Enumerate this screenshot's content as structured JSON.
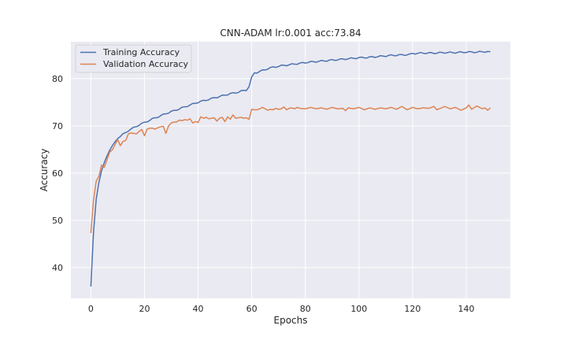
{
  "chart_data": {
    "type": "line",
    "title": "CNN-ADAM lr:0.001 acc:73.84",
    "xlabel": "Epochs",
    "ylabel": "Accuracy",
    "xlim": [
      -7.45,
      156.45
    ],
    "ylim": [
      33.5,
      87.8
    ],
    "xticks": [
      0,
      20,
      40,
      60,
      80,
      100,
      120,
      140
    ],
    "yticks": [
      40,
      50,
      60,
      70,
      80
    ],
    "grid": true,
    "legend_position": "top-left",
    "series": [
      {
        "name": "Training Accuracy",
        "color": "#4c72b0",
        "keypoints": [
          [
            0,
            36.0
          ],
          [
            1,
            47.5
          ],
          [
            2,
            54.5
          ],
          [
            3,
            58.0
          ],
          [
            4,
            60.5
          ],
          [
            5,
            62.2
          ],
          [
            6,
            63.6
          ],
          [
            7,
            64.8
          ],
          [
            8,
            65.8
          ],
          [
            9,
            66.6
          ],
          [
            10,
            67.3
          ],
          [
            12,
            68.2
          ],
          [
            14,
            69.0
          ],
          [
            16,
            69.6
          ],
          [
            18,
            70.2
          ],
          [
            20,
            70.7
          ],
          [
            22,
            71.2
          ],
          [
            24,
            71.7
          ],
          [
            26,
            72.1
          ],
          [
            28,
            72.6
          ],
          [
            30,
            73.0
          ],
          [
            32,
            73.4
          ],
          [
            34,
            73.8
          ],
          [
            36,
            74.2
          ],
          [
            38,
            74.6
          ],
          [
            40,
            75.0
          ],
          [
            42,
            75.3
          ],
          [
            44,
            75.6
          ],
          [
            46,
            75.9
          ],
          [
            48,
            76.2
          ],
          [
            50,
            76.5
          ],
          [
            52,
            76.8
          ],
          [
            54,
            77.0
          ],
          [
            56,
            77.3
          ],
          [
            58,
            77.6
          ],
          [
            59,
            78.3
          ],
          [
            60,
            80.2
          ],
          [
            61,
            81.2
          ],
          [
            62,
            81.3
          ],
          [
            64,
            81.7
          ],
          [
            66,
            82.1
          ],
          [
            68,
            82.4
          ],
          [
            70,
            82.6
          ],
          [
            72,
            82.8
          ],
          [
            74,
            82.9
          ],
          [
            76,
            83.1
          ],
          [
            78,
            83.2
          ],
          [
            80,
            83.4
          ],
          [
            84,
            83.6
          ],
          [
            88,
            83.8
          ],
          [
            92,
            84.0
          ],
          [
            96,
            84.2
          ],
          [
            100,
            84.4
          ],
          [
            104,
            84.5
          ],
          [
            108,
            84.7
          ],
          [
            112,
            84.9
          ],
          [
            116,
            85.0
          ],
          [
            119,
            85.1
          ],
          [
            120,
            85.3
          ],
          [
            124,
            85.4
          ],
          [
            128,
            85.4
          ],
          [
            132,
            85.5
          ],
          [
            136,
            85.5
          ],
          [
            140,
            85.6
          ],
          [
            144,
            85.6
          ],
          [
            147,
            85.7
          ],
          [
            149,
            85.7
          ]
        ],
        "wiggle": 0.15
      },
      {
        "name": "Validation Accuracy",
        "color": "#dd8452",
        "keypoints": [
          [
            0,
            47.3
          ],
          [
            1,
            54.3
          ],
          [
            2,
            58.3
          ],
          [
            3,
            59.3
          ],
          [
            4,
            61.7
          ],
          [
            5,
            61.2
          ],
          [
            6,
            62.8
          ],
          [
            7,
            64.4
          ],
          [
            8,
            64.9
          ],
          [
            9,
            66.0
          ],
          [
            10,
            67.1
          ],
          [
            11,
            65.8
          ],
          [
            12,
            66.7
          ],
          [
            13,
            66.9
          ],
          [
            14,
            68.3
          ],
          [
            15,
            68.5
          ],
          [
            16,
            68.4
          ],
          [
            17,
            68.3
          ],
          [
            18,
            68.8
          ],
          [
            19,
            69.2
          ],
          [
            20,
            67.9
          ],
          [
            21,
            69.3
          ],
          [
            22,
            69.5
          ],
          [
            23,
            69.5
          ],
          [
            24,
            69.3
          ],
          [
            25,
            69.6
          ],
          [
            26,
            69.8
          ],
          [
            27,
            69.9
          ],
          [
            28,
            68.4
          ],
          [
            29,
            70.0
          ],
          [
            30,
            70.6
          ],
          [
            31,
            70.8
          ],
          [
            32,
            70.8
          ],
          [
            33,
            71.2
          ],
          [
            34,
            71.1
          ],
          [
            35,
            71.3
          ],
          [
            36,
            71.2
          ],
          [
            37,
            71.5
          ],
          [
            38,
            70.6
          ],
          [
            39,
            70.9
          ],
          [
            40,
            70.7
          ],
          [
            41,
            71.9
          ],
          [
            42,
            71.6
          ],
          [
            43,
            71.8
          ],
          [
            44,
            71.5
          ],
          [
            45,
            71.6
          ],
          [
            46,
            71.7
          ],
          [
            47,
            71.0
          ],
          [
            48,
            71.6
          ],
          [
            49,
            71.8
          ],
          [
            50,
            70.9
          ],
          [
            51,
            71.9
          ],
          [
            52,
            71.4
          ],
          [
            53,
            72.3
          ],
          [
            54,
            71.6
          ],
          [
            55,
            71.7
          ],
          [
            56,
            71.8
          ],
          [
            57,
            71.6
          ],
          [
            58,
            71.7
          ],
          [
            59,
            71.4
          ],
          [
            60,
            73.5
          ],
          [
            61,
            73.4
          ],
          [
            62,
            73.4
          ],
          [
            63,
            73.6
          ],
          [
            64,
            73.9
          ],
          [
            65,
            73.6
          ],
          [
            66,
            73.3
          ],
          [
            67,
            73.5
          ],
          [
            68,
            73.4
          ],
          [
            69,
            73.7
          ],
          [
            70,
            73.5
          ],
          [
            71,
            73.6
          ],
          [
            72,
            74.0
          ],
          [
            73,
            73.4
          ],
          [
            74,
            73.7
          ],
          [
            75,
            73.8
          ],
          [
            76,
            73.6
          ],
          [
            77,
            73.9
          ],
          [
            78,
            73.7
          ],
          [
            80,
            73.6
          ],
          [
            82,
            73.9
          ],
          [
            84,
            73.6
          ],
          [
            86,
            73.8
          ],
          [
            88,
            73.5
          ],
          [
            90,
            73.9
          ],
          [
            92,
            73.6
          ],
          [
            94,
            73.7
          ],
          [
            95,
            73.2
          ],
          [
            96,
            73.8
          ],
          [
            98,
            73.6
          ],
          [
            100,
            73.9
          ],
          [
            102,
            73.4
          ],
          [
            104,
            73.8
          ],
          [
            106,
            73.5
          ],
          [
            108,
            73.8
          ],
          [
            110,
            73.6
          ],
          [
            112,
            73.9
          ],
          [
            114,
            73.5
          ],
          [
            116,
            74.1
          ],
          [
            118,
            73.4
          ],
          [
            120,
            73.9
          ],
          [
            122,
            73.6
          ],
          [
            124,
            73.8
          ],
          [
            126,
            73.7
          ],
          [
            128,
            74.1
          ],
          [
            129,
            73.4
          ],
          [
            130,
            73.6
          ],
          [
            132,
            74.1
          ],
          [
            134,
            73.6
          ],
          [
            136,
            73.9
          ],
          [
            138,
            73.3
          ],
          [
            140,
            73.8
          ],
          [
            141,
            74.4
          ],
          [
            142,
            73.5
          ],
          [
            144,
            74.2
          ],
          [
            146,
            73.6
          ],
          [
            147,
            73.8
          ],
          [
            148,
            73.3
          ],
          [
            149,
            73.8
          ]
        ],
        "wiggle": 0.0
      }
    ]
  }
}
